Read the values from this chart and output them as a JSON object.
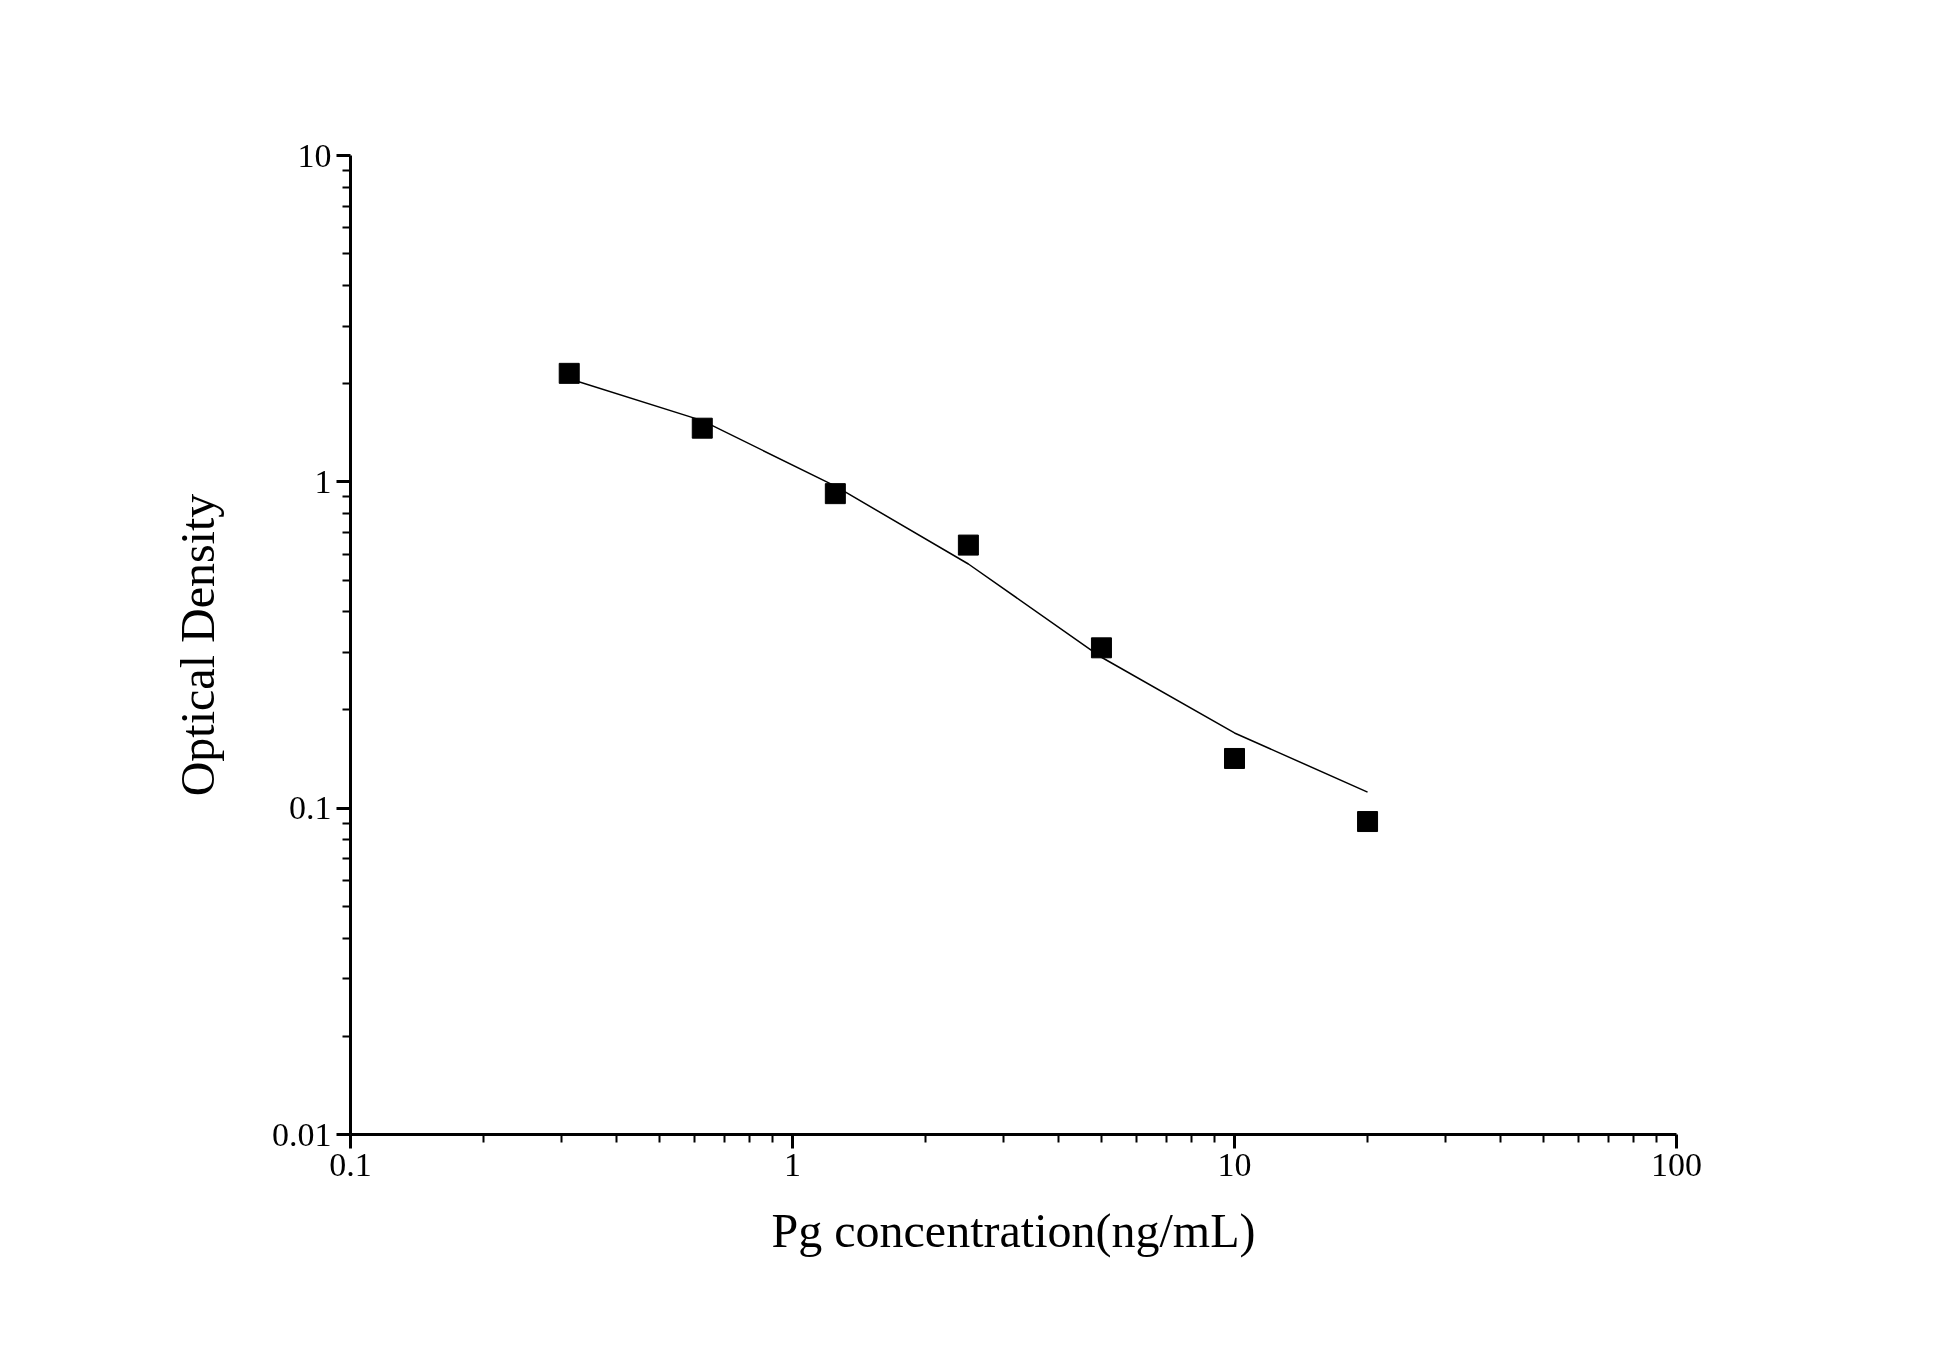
{
  "chart_data": {
    "type": "scatter",
    "xlabel": "Pg concentration(ng/mL)",
    "ylabel": "Optical Density",
    "log": "xy",
    "grid": false,
    "xlim": [
      0.1,
      100
    ],
    "ylim": [
      0.01,
      10
    ],
    "xticks": [
      0.1,
      1,
      10,
      100
    ],
    "yticks": [
      0.01,
      0.1,
      1,
      10
    ],
    "series": [
      {
        "color": "#000000",
        "marker": "square",
        "x": [
          0.3125,
          0.625,
          1.25,
          2.5,
          5,
          10,
          20
        ],
        "values": [
          2.15,
          1.46,
          0.92,
          0.64,
          0.31,
          0.142,
          0.091
        ]
      },
      {
        "type": "line",
        "color": "#000000",
        "marker": "none",
        "line_style": "solid",
        "x": [
          0.3125,
          0.625,
          1.25,
          2.5,
          5,
          10,
          20
        ],
        "values": [
          2.07,
          1.54,
          0.97,
          0.56,
          0.29,
          0.17,
          0.112
        ]
      }
    ]
  }
}
